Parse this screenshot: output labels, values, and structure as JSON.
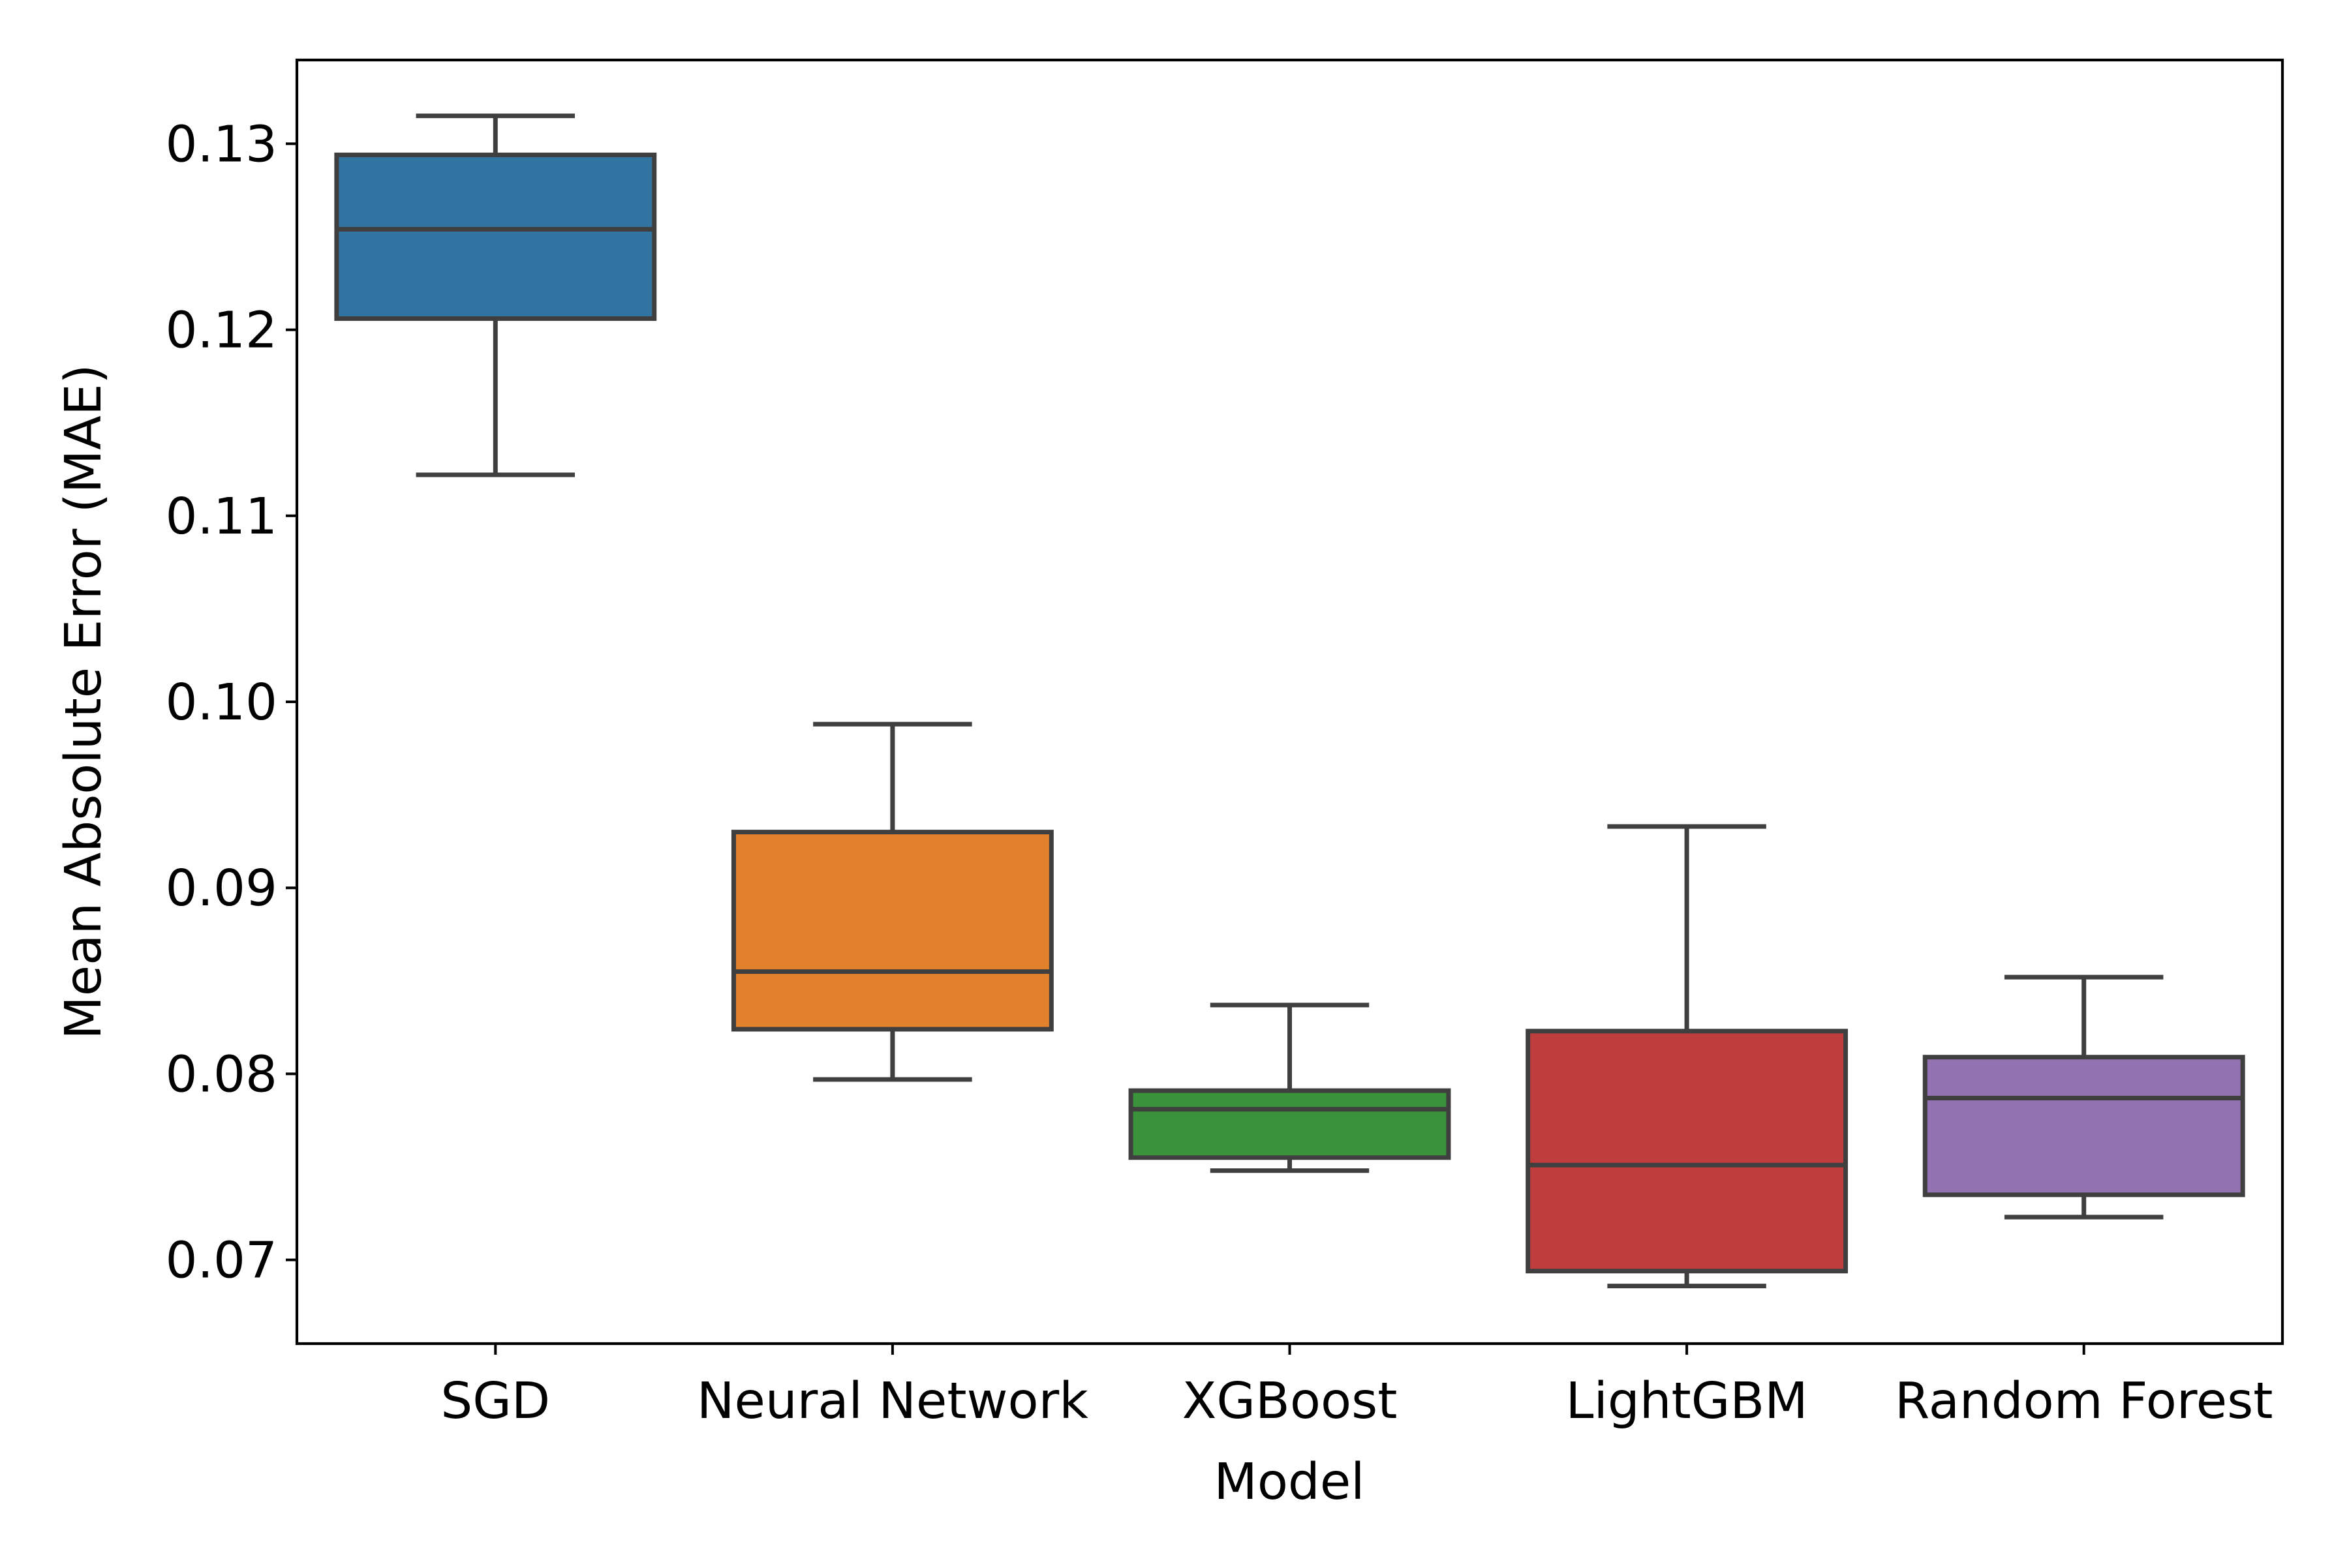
{
  "chart_data": {
    "type": "box",
    "title": "",
    "xlabel": "Model",
    "ylabel": "Mean Absolute Error (MAE)",
    "ylim": [
      0.0655,
      0.1345
    ],
    "yticks": [
      0.07,
      0.08,
      0.09,
      0.1,
      0.11,
      0.12,
      0.13
    ],
    "ytick_labels": [
      "0.07",
      "0.08",
      "0.09",
      "0.10",
      "0.11",
      "0.12",
      "0.13"
    ],
    "grid": false,
    "categories": [
      "SGD",
      "Neural Network",
      "XGBoost",
      "LightGBM",
      "Random Forest"
    ],
    "boxes": [
      {
        "category": "SGD",
        "whisker_low": 0.1122,
        "q1": 0.1206,
        "median": 0.1254,
        "q3": 0.1294,
        "whisker_high": 0.1315,
        "color": "#3274a1"
      },
      {
        "category": "Neural Network",
        "whisker_low": 0.0797,
        "q1": 0.0824,
        "median": 0.0855,
        "q3": 0.093,
        "whisker_high": 0.0988,
        "color": "#e1812c"
      },
      {
        "category": "XGBoost",
        "whisker_low": 0.0748,
        "q1": 0.0755,
        "median": 0.0781,
        "q3": 0.0791,
        "whisker_high": 0.0837,
        "color": "#3a923a"
      },
      {
        "category": "LightGBM",
        "whisker_low": 0.0686,
        "q1": 0.0694,
        "median": 0.0751,
        "q3": 0.0823,
        "whisker_high": 0.0933,
        "color": "#c03d3e"
      },
      {
        "category": "Random Forest",
        "whisker_low": 0.0723,
        "q1": 0.0735,
        "median": 0.0787,
        "q3": 0.0809,
        "whisker_high": 0.0852,
        "color": "#9372b2"
      }
    ]
  }
}
